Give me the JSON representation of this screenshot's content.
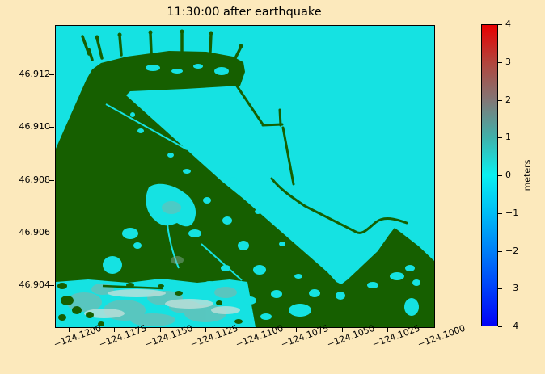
{
  "title": "11:30:00 after earthquake",
  "colors": {
    "figure_background": "#fce9bc",
    "water_cyan": "#15e2e2",
    "land_green": "#165f00",
    "beach_gray": "#8fb0a4",
    "beach_pale": "#bfe0da",
    "frame": "#000000"
  },
  "axes": {
    "x_tick_labels": [
      "−124.1200",
      "−124.1175",
      "−124.1150",
      "−124.1125",
      "−124.1100",
      "−124.1075",
      "−124.1050",
      "−124.1025",
      "−124.1000"
    ],
    "y_tick_labels": [
      "46.912",
      "46.910",
      "46.908",
      "46.906",
      "46.904"
    ]
  },
  "colorbar": {
    "label": "meters",
    "tick_labels": [
      "4",
      "3",
      "2",
      "1",
      "0",
      "−1",
      "−2",
      "−3",
      "−4"
    ],
    "vmin": -4,
    "vmax": 4,
    "gradient": [
      [
        "0%",
        "#e80000"
      ],
      [
        "12.5%",
        "#b2453c"
      ],
      [
        "25%",
        "#827776"
      ],
      [
        "37.5%",
        "#3fb2ab"
      ],
      [
        "50%",
        "#0af0f0"
      ],
      [
        "62.5%",
        "#00bdf5"
      ],
      [
        "75%",
        "#0080f8"
      ],
      [
        "87.5%",
        "#0040fa"
      ],
      [
        "100%",
        "#0202f6"
      ]
    ]
  },
  "chart_data": {
    "type": "heatmap",
    "title": "11:30:00 after earthquake",
    "xlabel": "",
    "ylabel": "",
    "x_ticks": [
      -124.12,
      -124.1175,
      -124.115,
      -124.1125,
      -124.11,
      -124.1075,
      -124.105,
      -124.1025,
      -124.1
    ],
    "y_ticks": [
      46.912,
      46.91,
      46.908,
      46.906,
      46.904
    ],
    "xlim": [
      -124.1207,
      -124.0993
    ],
    "ylim": [
      46.9024,
      46.9139
    ],
    "grid": false,
    "colorbar": {
      "label": "meters",
      "vmin": -4,
      "vmax": 4,
      "ticks": [
        4,
        3,
        2,
        1,
        0,
        -1,
        -2,
        -3,
        -4
      ],
      "position": "right"
    },
    "colormap_value_to_color": [
      [
        -4,
        "#0202f6"
      ],
      [
        -2,
        "#0080f8"
      ],
      [
        0,
        "#0af0f0"
      ],
      [
        1,
        "#3fb2ab"
      ],
      [
        2,
        "#827776"
      ],
      [
        3,
        "#b2453c"
      ],
      [
        4,
        "#e80000"
      ]
    ],
    "features": [
      {
        "name": "open-ocean-and-harbor-water",
        "approx_value_m": 0,
        "rendered": "bright cyan, fills top-right half of map"
      },
      {
        "name": "main-peninsula-dry-land",
        "rendered": "dark green mass occupying left and lower-center, diagonal NE edge"
      },
      {
        "name": "marina-dock-band-with-finger-piers",
        "rendered": "green band along top of peninsula with 5-6 thin piers pointing up"
      },
      {
        "name": "triangular-marina-basin",
        "approx_value_m": 0,
        "rendered": "cyan triangle between dock band and diagonal mole"
      },
      {
        "name": "entrance-breakwater-L-groin",
        "rendered": "thin green lines right of marina entrance"
      },
      {
        "name": "curved-outer-jetty",
        "rendered": "thin green S-curved line crossing open water toward lower right"
      },
      {
        "name": "flooded-beach-strip",
        "approx_value_m": "0 to 2",
        "rendered": "mottled cyan/gray strip along bottom-left with green speckles"
      },
      {
        "name": "flooded-streets-and-ponds-on-land",
        "approx_value_m": "0 to 1",
        "rendered": "scattered cyan patches inside green land"
      },
      {
        "name": "south-spit-headland",
        "rendered": "green pointed landmass at lower right"
      }
    ]
  }
}
